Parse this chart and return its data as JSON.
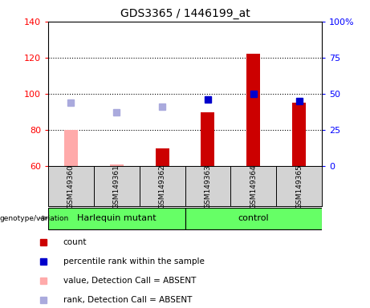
{
  "title": "GDS3365 / 1446199_at",
  "samples": [
    "GSM149360",
    "GSM149361",
    "GSM149362",
    "GSM149363",
    "GSM149364",
    "GSM149365"
  ],
  "bar_values": [
    80,
    61,
    70,
    90,
    122,
    95
  ],
  "bar_absent": [
    true,
    true,
    false,
    false,
    false,
    false
  ],
  "rank_values_left": [
    95,
    90,
    93,
    97,
    100,
    96
  ],
  "rank_absent": [
    true,
    true,
    true,
    false,
    false,
    false
  ],
  "ylim_left": [
    60,
    140
  ],
  "ylim_right": [
    0,
    100
  ],
  "yticks_left": [
    60,
    80,
    100,
    120,
    140
  ],
  "yticks_right": [
    0,
    25,
    50,
    75,
    100
  ],
  "ytick_labels_right": [
    "0",
    "25",
    "50",
    "75",
    "100%"
  ],
  "color_bar_present": "#cc0000",
  "color_bar_absent": "#ffaaaa",
  "color_rank_present": "#0000cc",
  "color_rank_absent": "#aaaadd",
  "group_labels": [
    "Harlequin mutant",
    "control"
  ],
  "group_ranges": [
    [
      0,
      3
    ],
    [
      3,
      6
    ]
  ],
  "group_color": "#66ff66",
  "sample_box_color": "#d3d3d3",
  "legend_items": [
    {
      "label": "count",
      "color": "#cc0000"
    },
    {
      "label": "percentile rank within the sample",
      "color": "#0000cc"
    },
    {
      "label": "value, Detection Call = ABSENT",
      "color": "#ffaaaa"
    },
    {
      "label": "rank, Detection Call = ABSENT",
      "color": "#aaaadd"
    }
  ],
  "genotype_label": "genotype/variation",
  "bar_width": 0.3,
  "marker_size": 6
}
